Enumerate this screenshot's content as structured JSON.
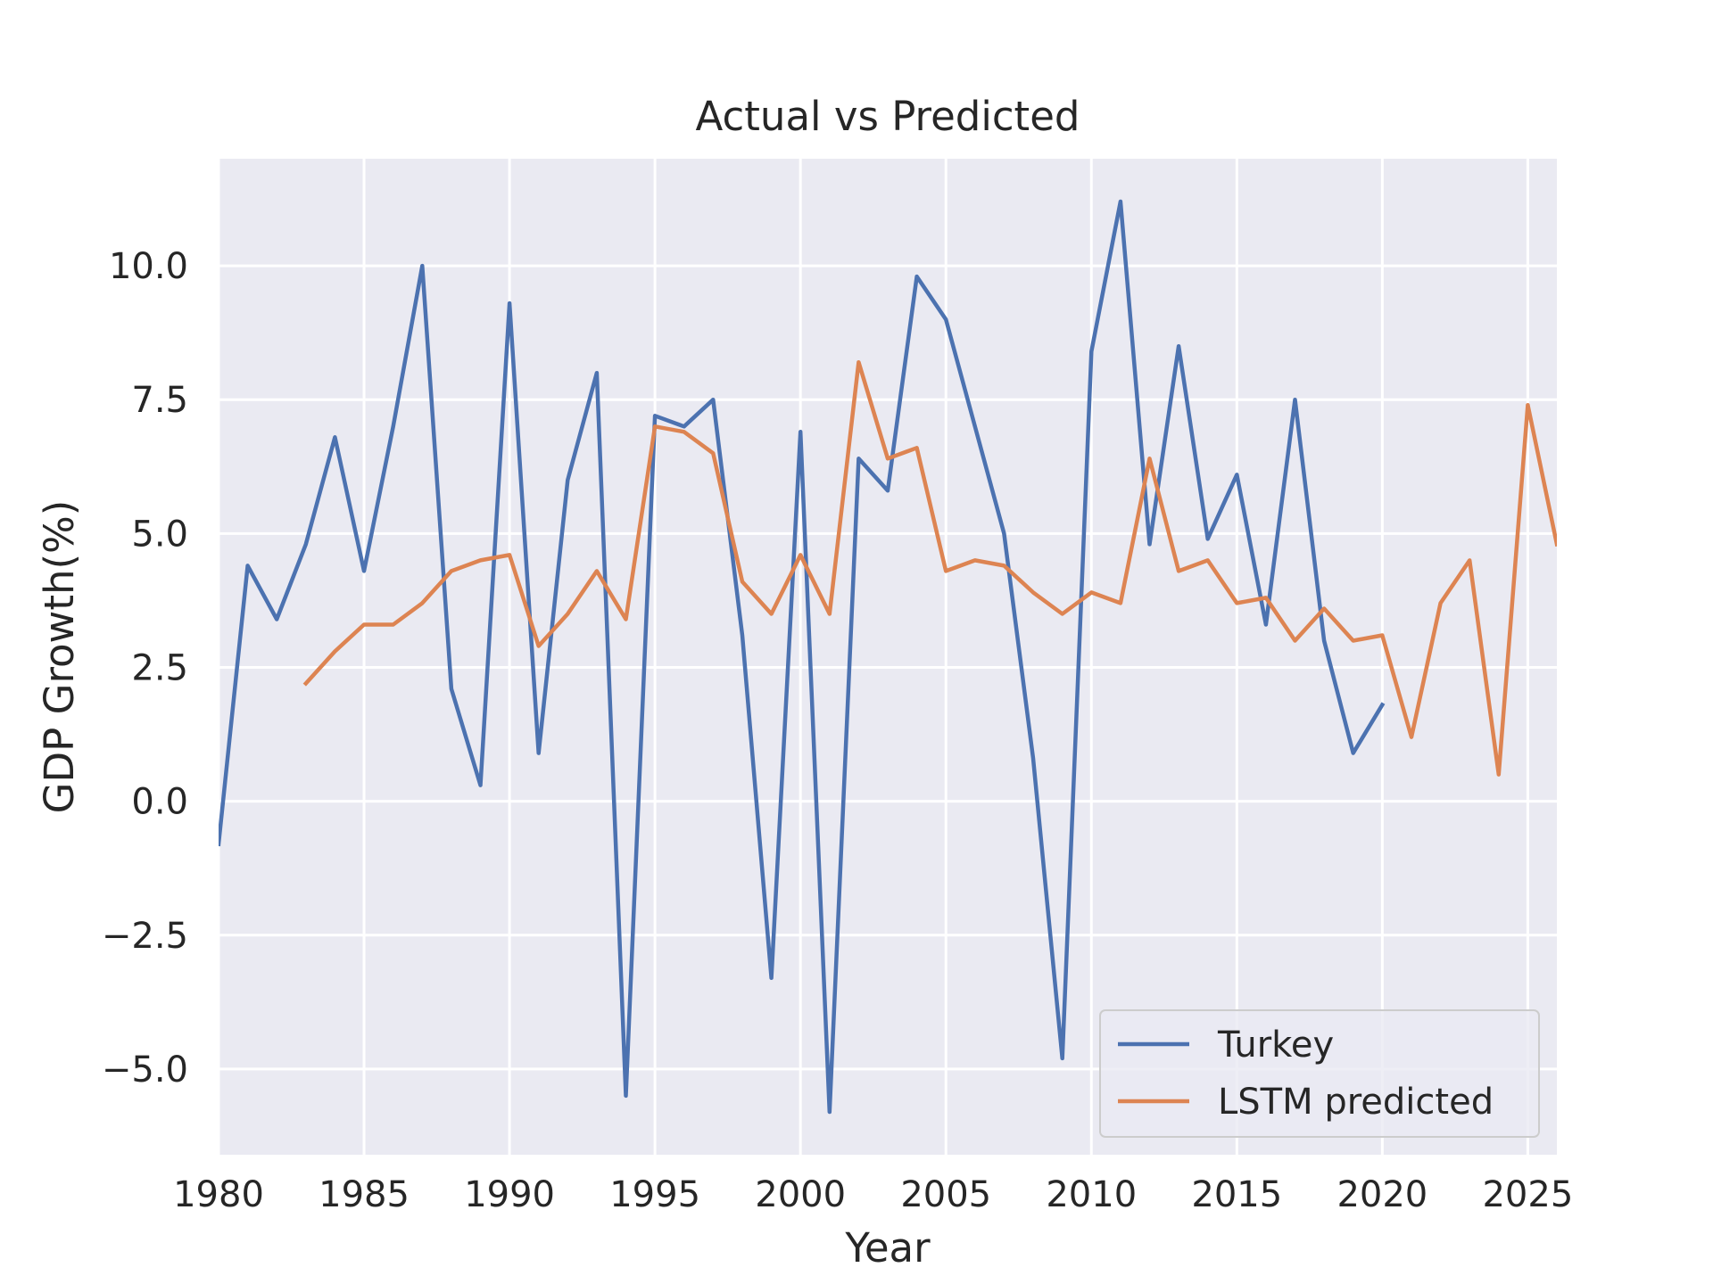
{
  "chart_data": {
    "type": "line",
    "title": "Actual vs Predicted",
    "xlabel": "Year",
    "ylabel": "GDP Growth(%)",
    "xlim": [
      1980,
      2026
    ],
    "ylim": [
      -6.6,
      12.0
    ],
    "xticks": [
      1980,
      1985,
      1990,
      1995,
      2000,
      2005,
      2010,
      2015,
      2020,
      2025
    ],
    "xtick_labels": [
      "1980",
      "1985",
      "1990",
      "1995",
      "2000",
      "2005",
      "2010",
      "2015",
      "2020",
      "2025"
    ],
    "yticks": [
      -5.0,
      -2.5,
      0.0,
      2.5,
      5.0,
      7.5,
      10.0
    ],
    "ytick_labels": [
      "−5.0",
      "−2.5",
      "0.0",
      "2.5",
      "5.0",
      "7.5",
      "10.0"
    ],
    "grid": true,
    "legend_position": "lower-right",
    "background": "#eaeaf2",
    "series": [
      {
        "name": "Turkey",
        "color": "#4c72b0",
        "x": [
          1980,
          1981,
          1982,
          1983,
          1984,
          1985,
          1986,
          1987,
          1988,
          1989,
          1990,
          1991,
          1992,
          1993,
          1994,
          1995,
          1996,
          1997,
          1998,
          1999,
          2000,
          2001,
          2002,
          2003,
          2004,
          2005,
          2006,
          2007,
          2008,
          2009,
          2010,
          2011,
          2012,
          2013,
          2014,
          2015,
          2016,
          2017,
          2018,
          2019,
          2020
        ],
        "y": [
          -0.8,
          4.4,
          3.4,
          4.8,
          6.8,
          4.3,
          7.0,
          10.0,
          2.1,
          0.3,
          9.3,
          0.9,
          6.0,
          8.0,
          -5.5,
          7.2,
          7.0,
          7.5,
          3.1,
          -3.3,
          6.9,
          -5.8,
          6.4,
          5.8,
          9.8,
          9.0,
          7.0,
          5.0,
          0.8,
          -4.8,
          8.4,
          11.2,
          4.8,
          8.5,
          4.9,
          6.1,
          3.3,
          7.5,
          3.0,
          0.9,
          1.8
        ]
      },
      {
        "name": "LSTM predicted",
        "color": "#dd8452",
        "x": [
          1983,
          1984,
          1985,
          1986,
          1987,
          1988,
          1989,
          1990,
          1991,
          1992,
          1993,
          1994,
          1995,
          1996,
          1997,
          1998,
          1999,
          2000,
          2001,
          2002,
          2003,
          2004,
          2005,
          2006,
          2007,
          2008,
          2009,
          2010,
          2011,
          2012,
          2013,
          2014,
          2015,
          2016,
          2017,
          2018,
          2019,
          2020,
          2021,
          2022,
          2023,
          2024,
          2025,
          2026
        ],
        "y": [
          2.2,
          2.8,
          3.3,
          3.3,
          3.7,
          4.3,
          4.5,
          4.6,
          2.9,
          3.5,
          4.3,
          3.4,
          7.0,
          6.9,
          6.5,
          4.1,
          3.5,
          4.6,
          3.5,
          8.2,
          6.4,
          6.6,
          4.3,
          4.5,
          4.4,
          3.9,
          3.5,
          3.9,
          3.7,
          6.4,
          4.3,
          4.5,
          3.7,
          3.8,
          3.0,
          3.6,
          3.0,
          3.1,
          1.2,
          3.7,
          4.5,
          0.5,
          7.4,
          4.8
        ]
      }
    ]
  }
}
